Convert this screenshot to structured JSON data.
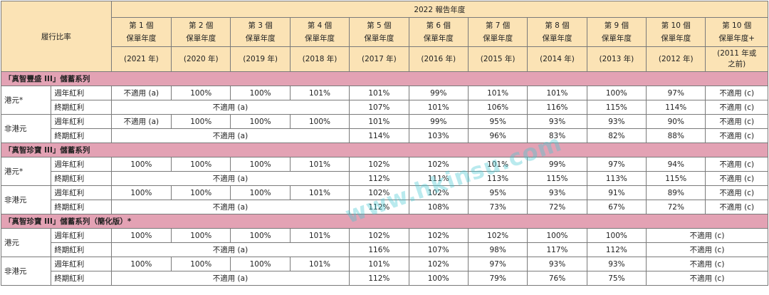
{
  "header": {
    "corner": "履行比率",
    "report_year": "2022 報告年度",
    "columns": [
      {
        "top": "第 1 個",
        "bottom": "保單年度",
        "year": "(2021 年)"
      },
      {
        "top": "第 2 個",
        "bottom": "保單年度",
        "year": "(2020 年)"
      },
      {
        "top": "第 3 個",
        "bottom": "保單年度",
        "year": "(2019 年)"
      },
      {
        "top": "第 4 個",
        "bottom": "保單年度",
        "year": "(2018 年)"
      },
      {
        "top": "第 5 個",
        "bottom": "保單年度",
        "year": "(2017 年)"
      },
      {
        "top": "第 6 個",
        "bottom": "保單年度",
        "year": "(2016 年)"
      },
      {
        "top": "第 7 個",
        "bottom": "保單年度",
        "year": "(2015 年)"
      },
      {
        "top": "第 8 個",
        "bottom": "保單年度",
        "year": "(2014 年)"
      },
      {
        "top": "第 9 個",
        "bottom": "保單年度",
        "year": "(2013 年)"
      },
      {
        "top": "第 10 個",
        "bottom": "保單年度",
        "year": "(2012 年)"
      },
      {
        "top": "第 10 個",
        "bottom": "保單年度+",
        "year": "(2011 年或",
        "year2": "之前)"
      }
    ]
  },
  "sections": [
    {
      "title": "「真智豐盛 III」儲蓄系列",
      "groups": [
        {
          "currency": "港元*",
          "annual_label": "週年紅利",
          "annual": [
            "不適用 (a)",
            "100%",
            "100%",
            "101%",
            "101%",
            "99%",
            "101%",
            "101%",
            "100%",
            "97%",
            "不適用 (c)"
          ],
          "terminal_label": "終期紅利",
          "terminal_na": "不適用 (a)",
          "terminal": [
            "107%",
            "101%",
            "106%",
            "116%",
            "115%",
            "114%",
            "不適用 (c)"
          ]
        },
        {
          "currency": "非港元",
          "annual_label": "週年紅利",
          "annual": [
            "不適用 (a)",
            "100%",
            "100%",
            "100%",
            "101%",
            "99%",
            "95%",
            "93%",
            "93%",
            "90%",
            "不適用 (c)"
          ],
          "terminal_label": "終期紅利",
          "terminal_na": "不適用 (a)",
          "terminal": [
            "114%",
            "103%",
            "96%",
            "83%",
            "82%",
            "88%",
            "不適用 (c)"
          ]
        }
      ]
    },
    {
      "title": "「真智珍寶 III」儲蓄系列",
      "groups": [
        {
          "currency": "港元*",
          "annual_label": "週年紅利",
          "annual": [
            "100%",
            "100%",
            "100%",
            "101%",
            "102%",
            "102%",
            "101%",
            "99%",
            "97%",
            "94%",
            "不適用 (c)"
          ],
          "terminal_label": "終期紅利",
          "terminal_na": "不適用 (a)",
          "terminal": [
            "112%",
            "111%",
            "113%",
            "115%",
            "113%",
            "115%",
            "不適用 (c)"
          ]
        },
        {
          "currency": "非港元",
          "annual_label": "週年紅利",
          "annual": [
            "100%",
            "100%",
            "100%",
            "101%",
            "102%",
            "102%",
            "95%",
            "93%",
            "91%",
            "89%",
            "不適用 (c)"
          ],
          "terminal_label": "終期紅利",
          "terminal_na": "不適用 (a)",
          "terminal": [
            "112%",
            "108%",
            "73%",
            "72%",
            "67%",
            "72%",
            "不適用 (c)"
          ]
        }
      ]
    },
    {
      "title": "「真智珍寶 III」儲蓄系列（簡化版）*",
      "groups": [
        {
          "currency": "港元",
          "annual_label": "週年紅利",
          "annual": [
            "100%",
            "100%",
            "100%",
            "101%",
            "102%",
            "102%",
            "102%",
            "100%",
            "100%"
          ],
          "annual_tail": "不適用 (c)",
          "terminal_label": "終期紅利",
          "terminal_na": "不適用 (a)",
          "terminal": [
            "116%",
            "107%",
            "98%",
            "117%",
            "112%"
          ],
          "terminal_tail": "不適用 (c)"
        },
        {
          "currency": "非港元",
          "annual_label": "週年紅利",
          "annual": [
            "100%",
            "100%",
            "100%",
            "101%",
            "101%",
            "102%",
            "97%",
            "93%",
            "93%"
          ],
          "annual_tail": "不適用 (c)",
          "terminal_label": "終期紅利",
          "terminal_na": "不適用 (a)",
          "terminal": [
            "112%",
            "100%",
            "79%",
            "76%",
            "75%"
          ],
          "terminal_tail": "不適用 (c)"
        }
      ]
    }
  ],
  "watermark": "www.hkinsu.com"
}
